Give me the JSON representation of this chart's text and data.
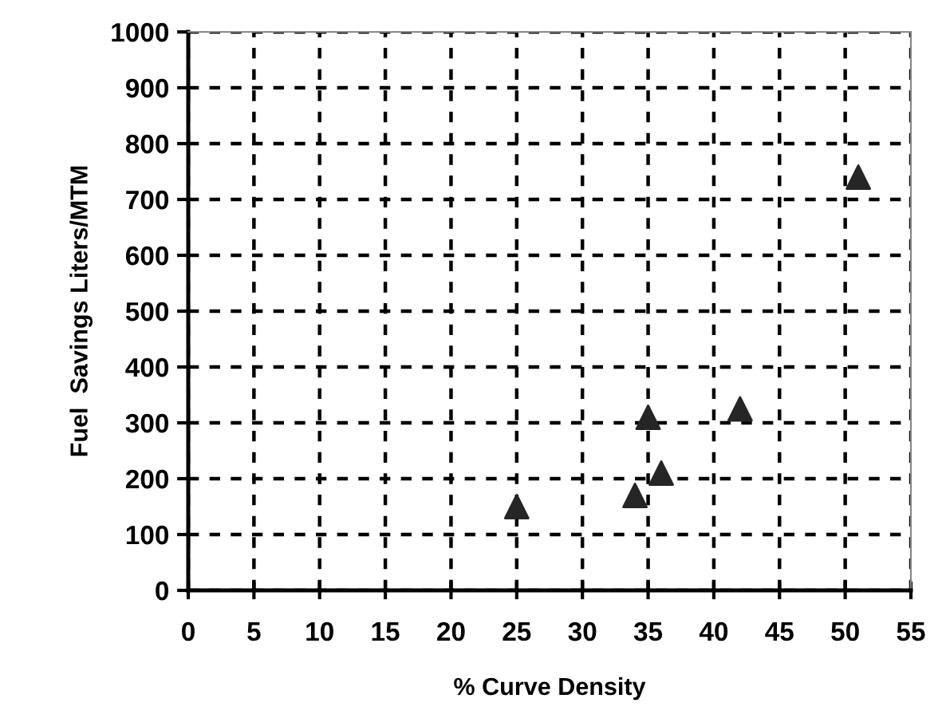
{
  "chart_data": {
    "type": "scatter",
    "xlabel": "% Curve Density",
    "ylabel": "Fuel  Savings Liters/MTM",
    "x": [
      25,
      34,
      36,
      35,
      42,
      51
    ],
    "series": [
      {
        "color": "#262626",
        "values": [
          150,
          170,
          210,
          310,
          325,
          740
        ]
      }
    ],
    "marker": "triangle",
    "xlim": [
      0,
      55
    ],
    "xticks": [
      0,
      5,
      10,
      15,
      20,
      25,
      30,
      35,
      40,
      45,
      50,
      55
    ],
    "ylim": [
      0,
      1000
    ],
    "yticks": [
      0,
      100,
      200,
      300,
      400,
      500,
      600,
      700,
      800,
      900,
      1000
    ],
    "grid": true,
    "legend": false
  }
}
